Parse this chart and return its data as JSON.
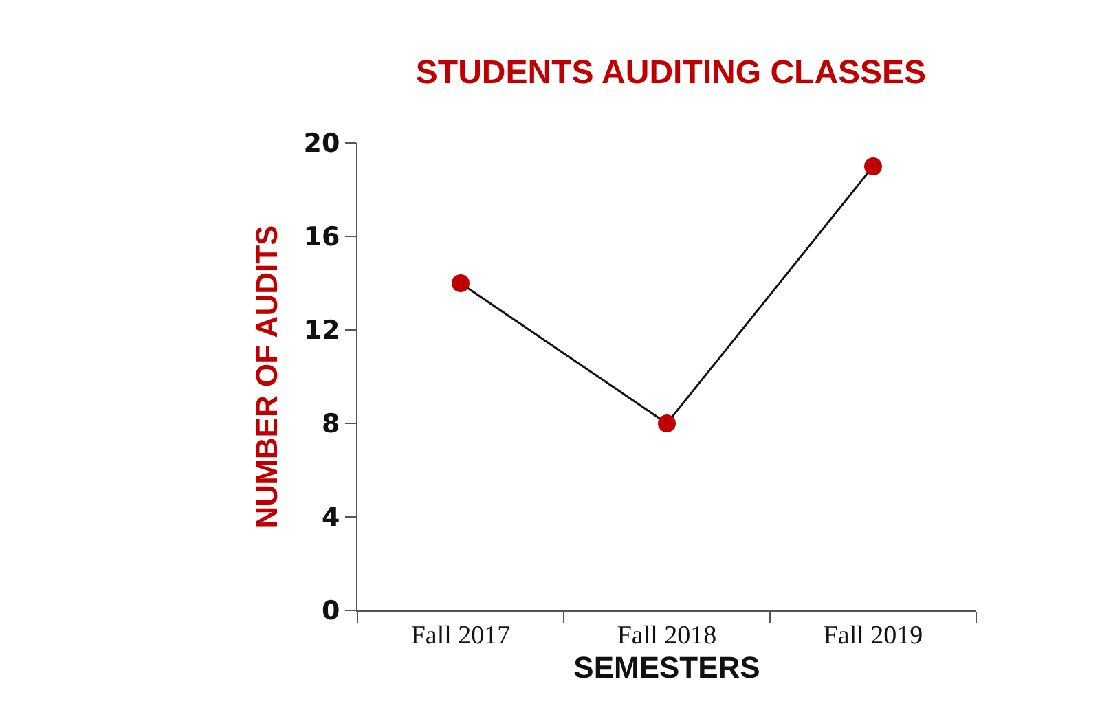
{
  "chart_data": {
    "type": "line",
    "title": "STUDENTS AUDITING CLASSES",
    "xlabel": "SEMESTERS",
    "ylabel": "NUMBER OF AUDITS",
    "categories": [
      "Fall 2017",
      "Fall 2018",
      "Fall 2019"
    ],
    "series": [
      {
        "color": "#c00000",
        "values": [
          14,
          8,
          19
        ]
      }
    ],
    "ylim": [
      0,
      20
    ],
    "yticks": [
      0,
      4,
      8,
      12,
      16,
      20
    ],
    "marker": "circle",
    "line_style": "solid"
  }
}
